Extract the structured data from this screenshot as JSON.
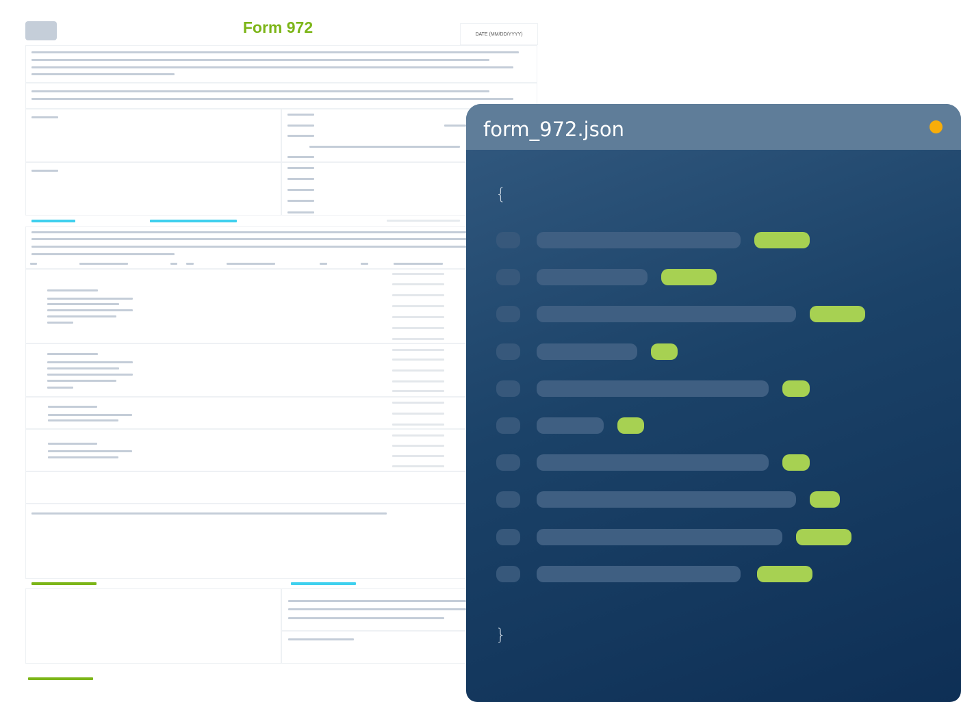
{
  "form": {
    "title": "Form 972",
    "date_label": "DATE (MM/DD/YYYY)",
    "accent_color": "#7cb518",
    "highlight_color": "#3fd0ee"
  },
  "json_panel": {
    "filename": "form_972.json",
    "open_brace": "{",
    "close_brace": "}",
    "status_dot_color": "#f8ad0a",
    "value_color": "#a7d152",
    "row_count": 10
  }
}
